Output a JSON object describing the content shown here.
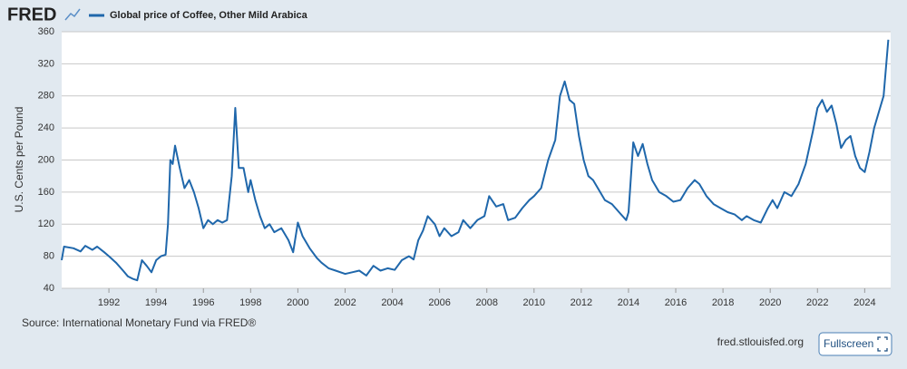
{
  "logo": "FRED",
  "source": "Source: International Monetary Fund via FRED®",
  "site": "fred.stlouisfed.org",
  "button": "Fullscreen",
  "chart_data": {
    "type": "line",
    "y_label": "U.S. Cents per Pound",
    "x": [
      1990.0,
      1990.1,
      1990.5,
      1990.8,
      1991.0,
      1991.3,
      1991.5,
      1991.8,
      1992.0,
      1992.3,
      1992.6,
      1992.8,
      1993.0,
      1993.2,
      1993.4,
      1993.6,
      1993.8,
      1994.0,
      1994.2,
      1994.4,
      1994.5,
      1994.6,
      1994.7,
      1994.8,
      1995.0,
      1995.2,
      1995.4,
      1995.6,
      1995.8,
      1996.0,
      1996.2,
      1996.4,
      1996.6,
      1996.8,
      1997.0,
      1997.2,
      1997.35,
      1997.5,
      1997.7,
      1997.9,
      1998.0,
      1998.2,
      1998.4,
      1998.6,
      1998.8,
      1999.0,
      1999.3,
      1999.6,
      1999.8,
      2000.0,
      2000.2,
      2000.5,
      2000.8,
      2001.0,
      2001.3,
      2001.6,
      2002.0,
      2002.3,
      2002.6,
      2002.9,
      2003.2,
      2003.5,
      2003.8,
      2004.1,
      2004.4,
      2004.7,
      2004.9,
      2005.1,
      2005.3,
      2005.5,
      2005.8,
      2006.0,
      2006.2,
      2006.5,
      2006.8,
      2007.0,
      2007.3,
      2007.6,
      2007.9,
      2008.1,
      2008.4,
      2008.7,
      2008.9,
      2009.2,
      2009.5,
      2009.8,
      2010.0,
      2010.3,
      2010.6,
      2010.9,
      2011.1,
      2011.3,
      2011.5,
      2011.7,
      2011.9,
      2012.1,
      2012.3,
      2012.5,
      2012.8,
      2013.0,
      2013.3,
      2013.6,
      2013.9,
      2014.0,
      2014.2,
      2014.4,
      2014.6,
      2014.8,
      2015.0,
      2015.3,
      2015.6,
      2015.9,
      2016.2,
      2016.5,
      2016.8,
      2017.0,
      2017.3,
      2017.6,
      2017.9,
      2018.2,
      2018.5,
      2018.8,
      2019.0,
      2019.3,
      2019.6,
      2019.9,
      2020.1,
      2020.3,
      2020.6,
      2020.9,
      2021.2,
      2021.5,
      2021.8,
      2022.0,
      2022.2,
      2022.4,
      2022.6,
      2022.8,
      2023.0,
      2023.2,
      2023.4,
      2023.6,
      2023.8,
      2024.0,
      2024.2,
      2024.4,
      2024.6,
      2024.8,
      2025.0
    ],
    "series": [
      {
        "name": "Global price of Coffee, Other Mild Arabica",
        "color": "#1f67ab",
        "values": [
          75,
          92,
          90,
          86,
          93,
          88,
          92,
          85,
          80,
          72,
          62,
          55,
          52,
          50,
          75,
          68,
          60,
          75,
          80,
          82,
          120,
          200,
          195,
          218,
          190,
          165,
          175,
          160,
          140,
          115,
          125,
          120,
          125,
          122,
          125,
          180,
          265,
          190,
          190,
          160,
          175,
          150,
          130,
          115,
          120,
          110,
          115,
          100,
          85,
          122,
          105,
          90,
          78,
          72,
          65,
          62,
          58,
          60,
          62,
          56,
          68,
          62,
          65,
          63,
          75,
          80,
          76,
          100,
          112,
          130,
          120,
          105,
          115,
          105,
          110,
          125,
          115,
          125,
          130,
          155,
          142,
          145,
          125,
          128,
          140,
          150,
          155,
          165,
          200,
          225,
          280,
          298,
          275,
          270,
          230,
          200,
          180,
          175,
          160,
          150,
          145,
          135,
          125,
          135,
          222,
          205,
          220,
          195,
          175,
          160,
          155,
          148,
          150,
          165,
          175,
          170,
          155,
          145,
          140,
          135,
          132,
          125,
          130,
          125,
          122,
          140,
          150,
          140,
          160,
          155,
          170,
          195,
          235,
          265,
          275,
          260,
          268,
          245,
          215,
          225,
          230,
          205,
          190,
          185,
          210,
          240,
          260,
          280,
          350
        ]
      }
    ],
    "xlim": [
      1990.0,
      2025.1
    ],
    "xticks": [
      1992,
      1994,
      1996,
      1998,
      2000,
      2002,
      2004,
      2006,
      2008,
      2010,
      2012,
      2014,
      2016,
      2018,
      2020,
      2022,
      2024
    ],
    "ylim": [
      40,
      360
    ],
    "yticks": [
      40,
      80,
      120,
      160,
      200,
      240,
      280,
      320,
      360
    ],
    "grid": true
  }
}
